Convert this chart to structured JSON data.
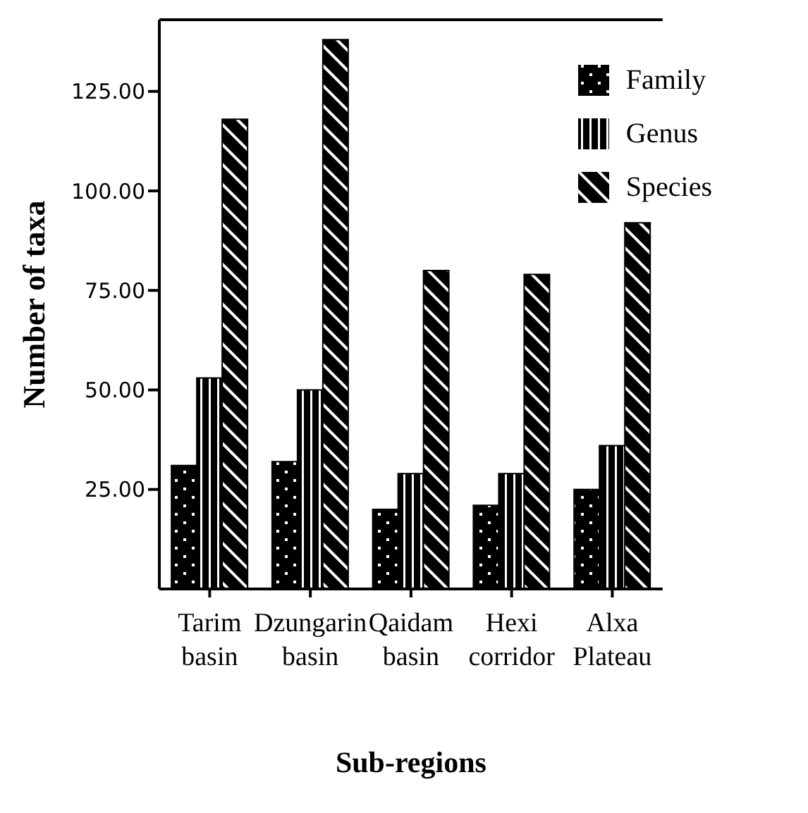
{
  "chart_data": {
    "type": "bar",
    "xlabel": "Sub-regions",
    "ylabel": "Number of taxa",
    "categories": [
      "Tarim basin",
      "Dzungarin basin",
      "Qaidam basin",
      "Hexi corridor",
      "Alxa Plateau"
    ],
    "series": [
      {
        "name": "Family",
        "color": "#000000",
        "values": [
          31,
          32,
          20,
          21,
          25
        ]
      },
      {
        "name": "Genus",
        "color": "#000000",
        "values": [
          53,
          50,
          29,
          29,
          36
        ]
      },
      {
        "name": "Species",
        "color": "#000000",
        "values": [
          118,
          138,
          80,
          79,
          92
        ]
      }
    ],
    "ylim": [
      0,
      143
    ],
    "yticks": [
      {
        "value": 25,
        "label": "25.00"
      },
      {
        "value": 50,
        "label": "50.00"
      },
      {
        "value": 75,
        "label": "75.00"
      },
      {
        "value": 100,
        "label": "100.00"
      },
      {
        "value": 125,
        "label": "125.00"
      }
    ],
    "grid": false,
    "legend": "top right"
  }
}
